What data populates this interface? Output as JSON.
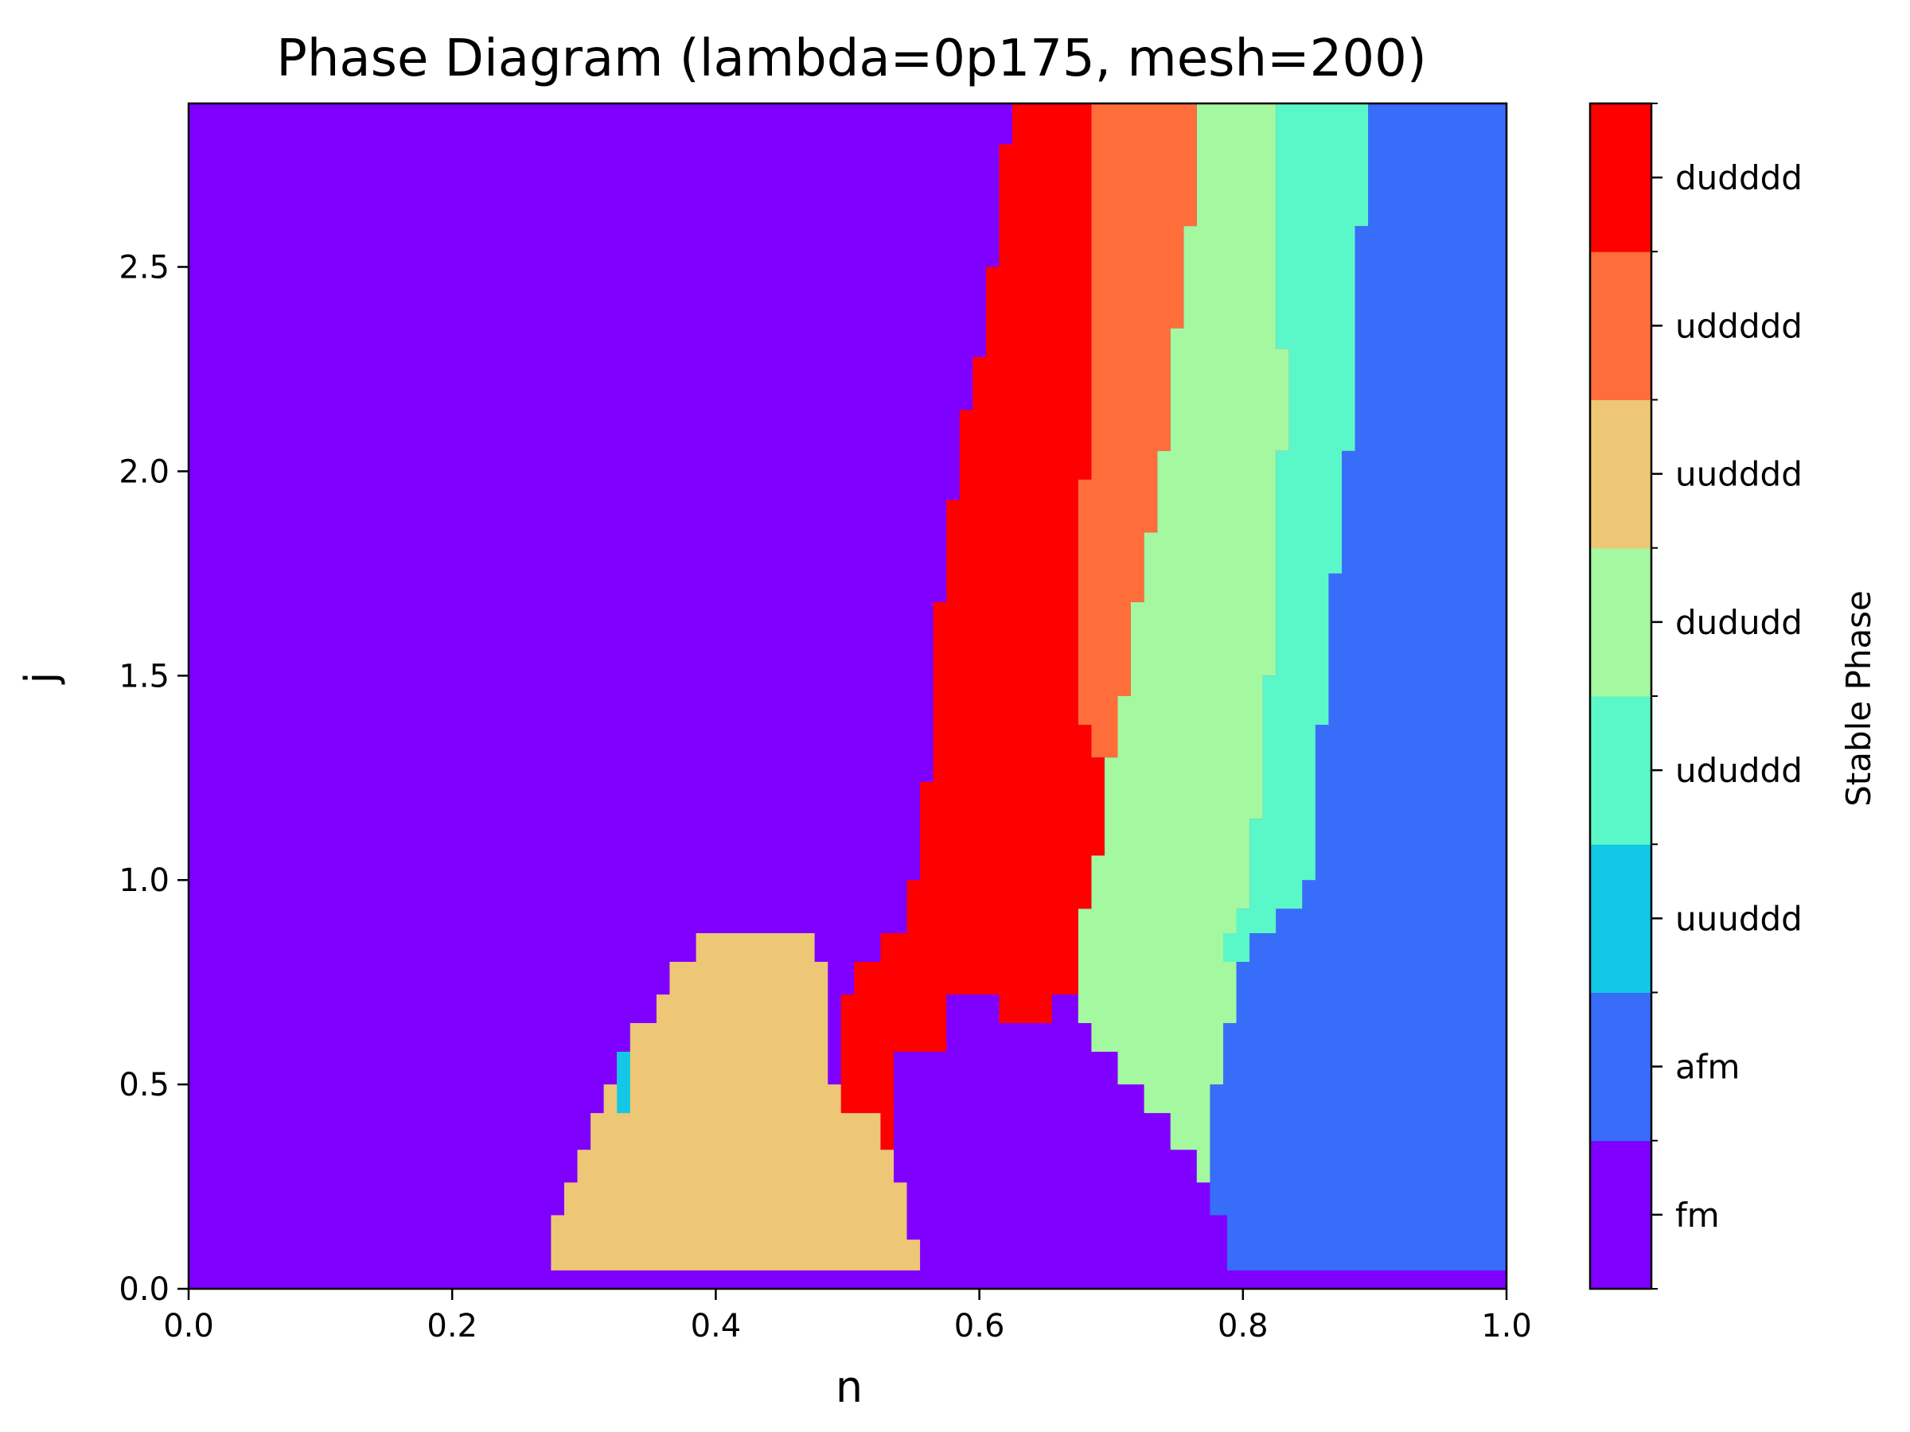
{
  "chart_data": {
    "type": "heatmap",
    "title": "Phase Diagram (lambda=0p175, mesh=200)",
    "xlabel": "n",
    "ylabel": "j",
    "xlim": [
      0.0,
      1.0
    ],
    "ylim": [
      0.0,
      2.9
    ],
    "x_ticks": [
      "0.0",
      "0.2",
      "0.4",
      "0.6",
      "0.8",
      "1.0"
    ],
    "y_ticks": [
      "0.0",
      "0.5",
      "1.0",
      "1.5",
      "2.0",
      "2.5"
    ],
    "colorbar": {
      "label": "Stable Phase",
      "phases": [
        "fm",
        "afm",
        "uuuddd",
        "ududdd",
        "dududd",
        "uudddd",
        "uddddd",
        "dudddd"
      ],
      "colors": [
        "#7f00ff",
        "#386df9",
        "#12c8e6",
        "#5af8c8",
        "#a4f89f",
        "#edc775",
        "#ff6e3a",
        "#ff0000"
      ]
    },
    "background_phase": "fm",
    "regions": [
      {
        "phase": "afm",
        "points": [
          [
            0.788,
            0.045
          ],
          [
            1.0,
            0.045
          ],
          [
            1.0,
            2.9
          ],
          [
            0.895,
            2.9
          ],
          [
            0.895,
            2.6
          ],
          [
            0.885,
            2.6
          ],
          [
            0.885,
            2.05
          ],
          [
            0.875,
            2.05
          ],
          [
            0.875,
            1.75
          ],
          [
            0.865,
            1.75
          ],
          [
            0.865,
            1.38
          ],
          [
            0.855,
            1.38
          ],
          [
            0.855,
            1.0
          ],
          [
            0.845,
            1.0
          ],
          [
            0.845,
            0.93
          ],
          [
            0.825,
            0.93
          ],
          [
            0.825,
            0.87
          ],
          [
            0.805,
            0.87
          ],
          [
            0.805,
            0.8
          ],
          [
            0.795,
            0.8
          ],
          [
            0.795,
            0.65
          ],
          [
            0.785,
            0.65
          ],
          [
            0.785,
            0.5
          ],
          [
            0.775,
            0.5
          ],
          [
            0.775,
            0.18
          ],
          [
            0.788,
            0.18
          ]
        ]
      },
      {
        "phase": "ududdd",
        "points": [
          [
            0.825,
            2.9
          ],
          [
            0.895,
            2.9
          ],
          [
            0.895,
            2.6
          ],
          [
            0.885,
            2.6
          ],
          [
            0.885,
            2.05
          ],
          [
            0.875,
            2.05
          ],
          [
            0.875,
            1.75
          ],
          [
            0.865,
            1.75
          ],
          [
            0.865,
            1.38
          ],
          [
            0.855,
            1.38
          ],
          [
            0.855,
            1.0
          ],
          [
            0.845,
            1.0
          ],
          [
            0.845,
            0.93
          ],
          [
            0.825,
            0.93
          ],
          [
            0.825,
            0.87
          ],
          [
            0.805,
            0.87
          ],
          [
            0.805,
            0.8
          ],
          [
            0.785,
            0.8
          ],
          [
            0.785,
            0.87
          ],
          [
            0.795,
            0.87
          ],
          [
            0.795,
            0.93
          ],
          [
            0.805,
            0.93
          ],
          [
            0.805,
            1.15
          ],
          [
            0.815,
            1.15
          ],
          [
            0.815,
            1.5
          ],
          [
            0.825,
            1.5
          ],
          [
            0.825,
            2.05
          ],
          [
            0.835,
            2.05
          ],
          [
            0.835,
            2.3
          ],
          [
            0.825,
            2.3
          ]
        ]
      },
      {
        "phase": "dududd",
        "points": [
          [
            0.765,
            2.9
          ],
          [
            0.825,
            2.9
          ],
          [
            0.825,
            2.3
          ],
          [
            0.835,
            2.3
          ],
          [
            0.835,
            2.05
          ],
          [
            0.825,
            2.05
          ],
          [
            0.825,
            1.5
          ],
          [
            0.815,
            1.5
          ],
          [
            0.815,
            1.15
          ],
          [
            0.805,
            1.15
          ],
          [
            0.805,
            0.93
          ],
          [
            0.795,
            0.93
          ],
          [
            0.795,
            0.87
          ],
          [
            0.785,
            0.87
          ],
          [
            0.785,
            0.8
          ],
          [
            0.795,
            0.8
          ],
          [
            0.795,
            0.65
          ],
          [
            0.785,
            0.65
          ],
          [
            0.785,
            0.5
          ],
          [
            0.775,
            0.5
          ],
          [
            0.775,
            0.26
          ],
          [
            0.765,
            0.26
          ],
          [
            0.765,
            0.34
          ],
          [
            0.745,
            0.34
          ],
          [
            0.745,
            0.43
          ],
          [
            0.725,
            0.43
          ],
          [
            0.725,
            0.5
          ],
          [
            0.705,
            0.5
          ],
          [
            0.705,
            0.58
          ],
          [
            0.685,
            0.58
          ],
          [
            0.685,
            0.65
          ],
          [
            0.675,
            0.65
          ],
          [
            0.675,
            0.93
          ],
          [
            0.685,
            0.93
          ],
          [
            0.685,
            1.06
          ],
          [
            0.695,
            1.06
          ],
          [
            0.695,
            1.3
          ],
          [
            0.705,
            1.3
          ],
          [
            0.705,
            1.45
          ],
          [
            0.715,
            1.45
          ],
          [
            0.715,
            1.68
          ],
          [
            0.725,
            1.68
          ],
          [
            0.725,
            1.85
          ],
          [
            0.735,
            1.85
          ],
          [
            0.735,
            2.05
          ],
          [
            0.745,
            2.05
          ],
          [
            0.745,
            2.35
          ],
          [
            0.755,
            2.35
          ],
          [
            0.755,
            2.6
          ],
          [
            0.765,
            2.6
          ]
        ]
      },
      {
        "phase": "uddddd",
        "points": [
          [
            0.685,
            2.9
          ],
          [
            0.765,
            2.9
          ],
          [
            0.765,
            2.6
          ],
          [
            0.755,
            2.6
          ],
          [
            0.755,
            2.35
          ],
          [
            0.745,
            2.35
          ],
          [
            0.745,
            2.05
          ],
          [
            0.735,
            2.05
          ],
          [
            0.735,
            1.85
          ],
          [
            0.725,
            1.85
          ],
          [
            0.725,
            1.68
          ],
          [
            0.715,
            1.68
          ],
          [
            0.715,
            1.45
          ],
          [
            0.705,
            1.45
          ],
          [
            0.705,
            1.3
          ],
          [
            0.685,
            1.3
          ],
          [
            0.685,
            1.38
          ],
          [
            0.675,
            1.38
          ],
          [
            0.675,
            1.98
          ],
          [
            0.685,
            1.98
          ]
        ]
      },
      {
        "phase": "dudddd",
        "points": [
          [
            0.625,
            2.9
          ],
          [
            0.685,
            2.9
          ],
          [
            0.685,
            1.98
          ],
          [
            0.675,
            1.98
          ],
          [
            0.675,
            1.38
          ],
          [
            0.685,
            1.38
          ],
          [
            0.685,
            1.3
          ],
          [
            0.695,
            1.3
          ],
          [
            0.695,
            1.06
          ],
          [
            0.685,
            1.06
          ],
          [
            0.685,
            0.93
          ],
          [
            0.675,
            0.93
          ],
          [
            0.675,
            0.72
          ],
          [
            0.655,
            0.72
          ],
          [
            0.655,
            0.65
          ],
          [
            0.615,
            0.65
          ],
          [
            0.615,
            0.72
          ],
          [
            0.575,
            0.72
          ],
          [
            0.575,
            0.58
          ],
          [
            0.535,
            0.58
          ],
          [
            0.535,
            0.5
          ],
          [
            0.535,
            0.34
          ],
          [
            0.525,
            0.34
          ],
          [
            0.525,
            0.43
          ],
          [
            0.495,
            0.43
          ],
          [
            0.495,
            0.72
          ],
          [
            0.505,
            0.72
          ],
          [
            0.505,
            0.8
          ],
          [
            0.525,
            0.8
          ],
          [
            0.525,
            0.87
          ],
          [
            0.545,
            0.87
          ],
          [
            0.545,
            1.0
          ],
          [
            0.555,
            1.0
          ],
          [
            0.555,
            1.24
          ],
          [
            0.565,
            1.24
          ],
          [
            0.565,
            1.68
          ],
          [
            0.575,
            1.68
          ],
          [
            0.575,
            1.93
          ],
          [
            0.585,
            1.93
          ],
          [
            0.585,
            2.15
          ],
          [
            0.595,
            2.15
          ],
          [
            0.595,
            2.28
          ],
          [
            0.605,
            2.28
          ],
          [
            0.605,
            2.5
          ],
          [
            0.615,
            2.5
          ],
          [
            0.615,
            2.8
          ],
          [
            0.625,
            2.8
          ]
        ]
      },
      {
        "phase": "uudddd",
        "points": [
          [
            0.275,
            0.045
          ],
          [
            0.555,
            0.045
          ],
          [
            0.555,
            0.12
          ],
          [
            0.545,
            0.12
          ],
          [
            0.545,
            0.26
          ],
          [
            0.535,
            0.26
          ],
          [
            0.535,
            0.34
          ],
          [
            0.525,
            0.34
          ],
          [
            0.525,
            0.43
          ],
          [
            0.495,
            0.43
          ],
          [
            0.495,
            0.5
          ],
          [
            0.485,
            0.5
          ],
          [
            0.485,
            0.72
          ],
          [
            0.485,
            0.8
          ],
          [
            0.475,
            0.8
          ],
          [
            0.475,
            0.87
          ],
          [
            0.385,
            0.87
          ],
          [
            0.385,
            0.8
          ],
          [
            0.365,
            0.8
          ],
          [
            0.365,
            0.72
          ],
          [
            0.355,
            0.72
          ],
          [
            0.355,
            0.65
          ],
          [
            0.335,
            0.65
          ],
          [
            0.335,
            0.58
          ],
          [
            0.325,
            0.58
          ],
          [
            0.325,
            0.5
          ],
          [
            0.315,
            0.5
          ],
          [
            0.315,
            0.43
          ],
          [
            0.305,
            0.43
          ],
          [
            0.305,
            0.34
          ],
          [
            0.295,
            0.34
          ],
          [
            0.295,
            0.26
          ],
          [
            0.285,
            0.26
          ],
          [
            0.285,
            0.18
          ],
          [
            0.275,
            0.18
          ]
        ]
      },
      {
        "phase": "uuuddd",
        "points": [
          [
            0.325,
            0.43
          ],
          [
            0.335,
            0.43
          ],
          [
            0.335,
            0.58
          ],
          [
            0.325,
            0.58
          ]
        ]
      }
    ]
  }
}
